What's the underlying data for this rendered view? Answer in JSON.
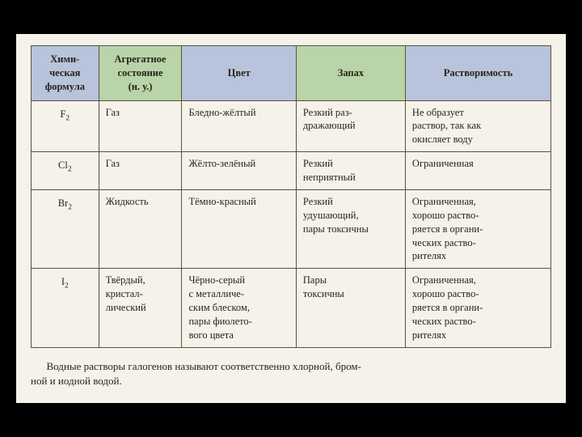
{
  "table": {
    "columns": [
      {
        "label": "Хими-\nческая\nформула",
        "class": "blue"
      },
      {
        "label": "Агрегатное\nсостояние\n(н. у.)",
        "class": "green"
      },
      {
        "label": "Цвет",
        "class": "blue"
      },
      {
        "label": "Запах",
        "class": "green"
      },
      {
        "label": "Растворимость",
        "class": "blue"
      }
    ],
    "rows": [
      {
        "formula_base": "F",
        "formula_sub": "2",
        "state": "Газ",
        "color": "Бледно-жёлтый",
        "smell": "Резкий раз-\nдражающий",
        "solubility": "Не образует\nраствор, так как\nокисляет воду"
      },
      {
        "formula_base": "Cl",
        "formula_sub": "2",
        "state": "Газ",
        "color": "Жёлто-зелёный",
        "smell": "Резкий\nнеприятный",
        "solubility": "Ограниченная"
      },
      {
        "formula_base": "Br",
        "formula_sub": "2",
        "state": "Жидкость",
        "color": "Тёмно-красный",
        "smell": "Резкий\nудушающий,\nпары токсичны",
        "solubility": "Ограниченная,\nхорошо раство-\nряется в органи-\nческих раство-\nрителях"
      },
      {
        "formula_base": "I",
        "formula_sub": "2",
        "state": "Твёрдый,\nкристал-\nлический",
        "color": "Чёрно-серый\nс металличе-\nским блеском,\nпары фиолето-\nвого цвета",
        "smell": "Пары\nтоксичны",
        "solubility": "Ограниченная,\nхорошо раство-\nряется в органи-\nческих раство-\nрителях"
      }
    ]
  },
  "caption": "Водные растворы галогенов называют соответственно хлорной, бром-\nной и иодной водой."
}
